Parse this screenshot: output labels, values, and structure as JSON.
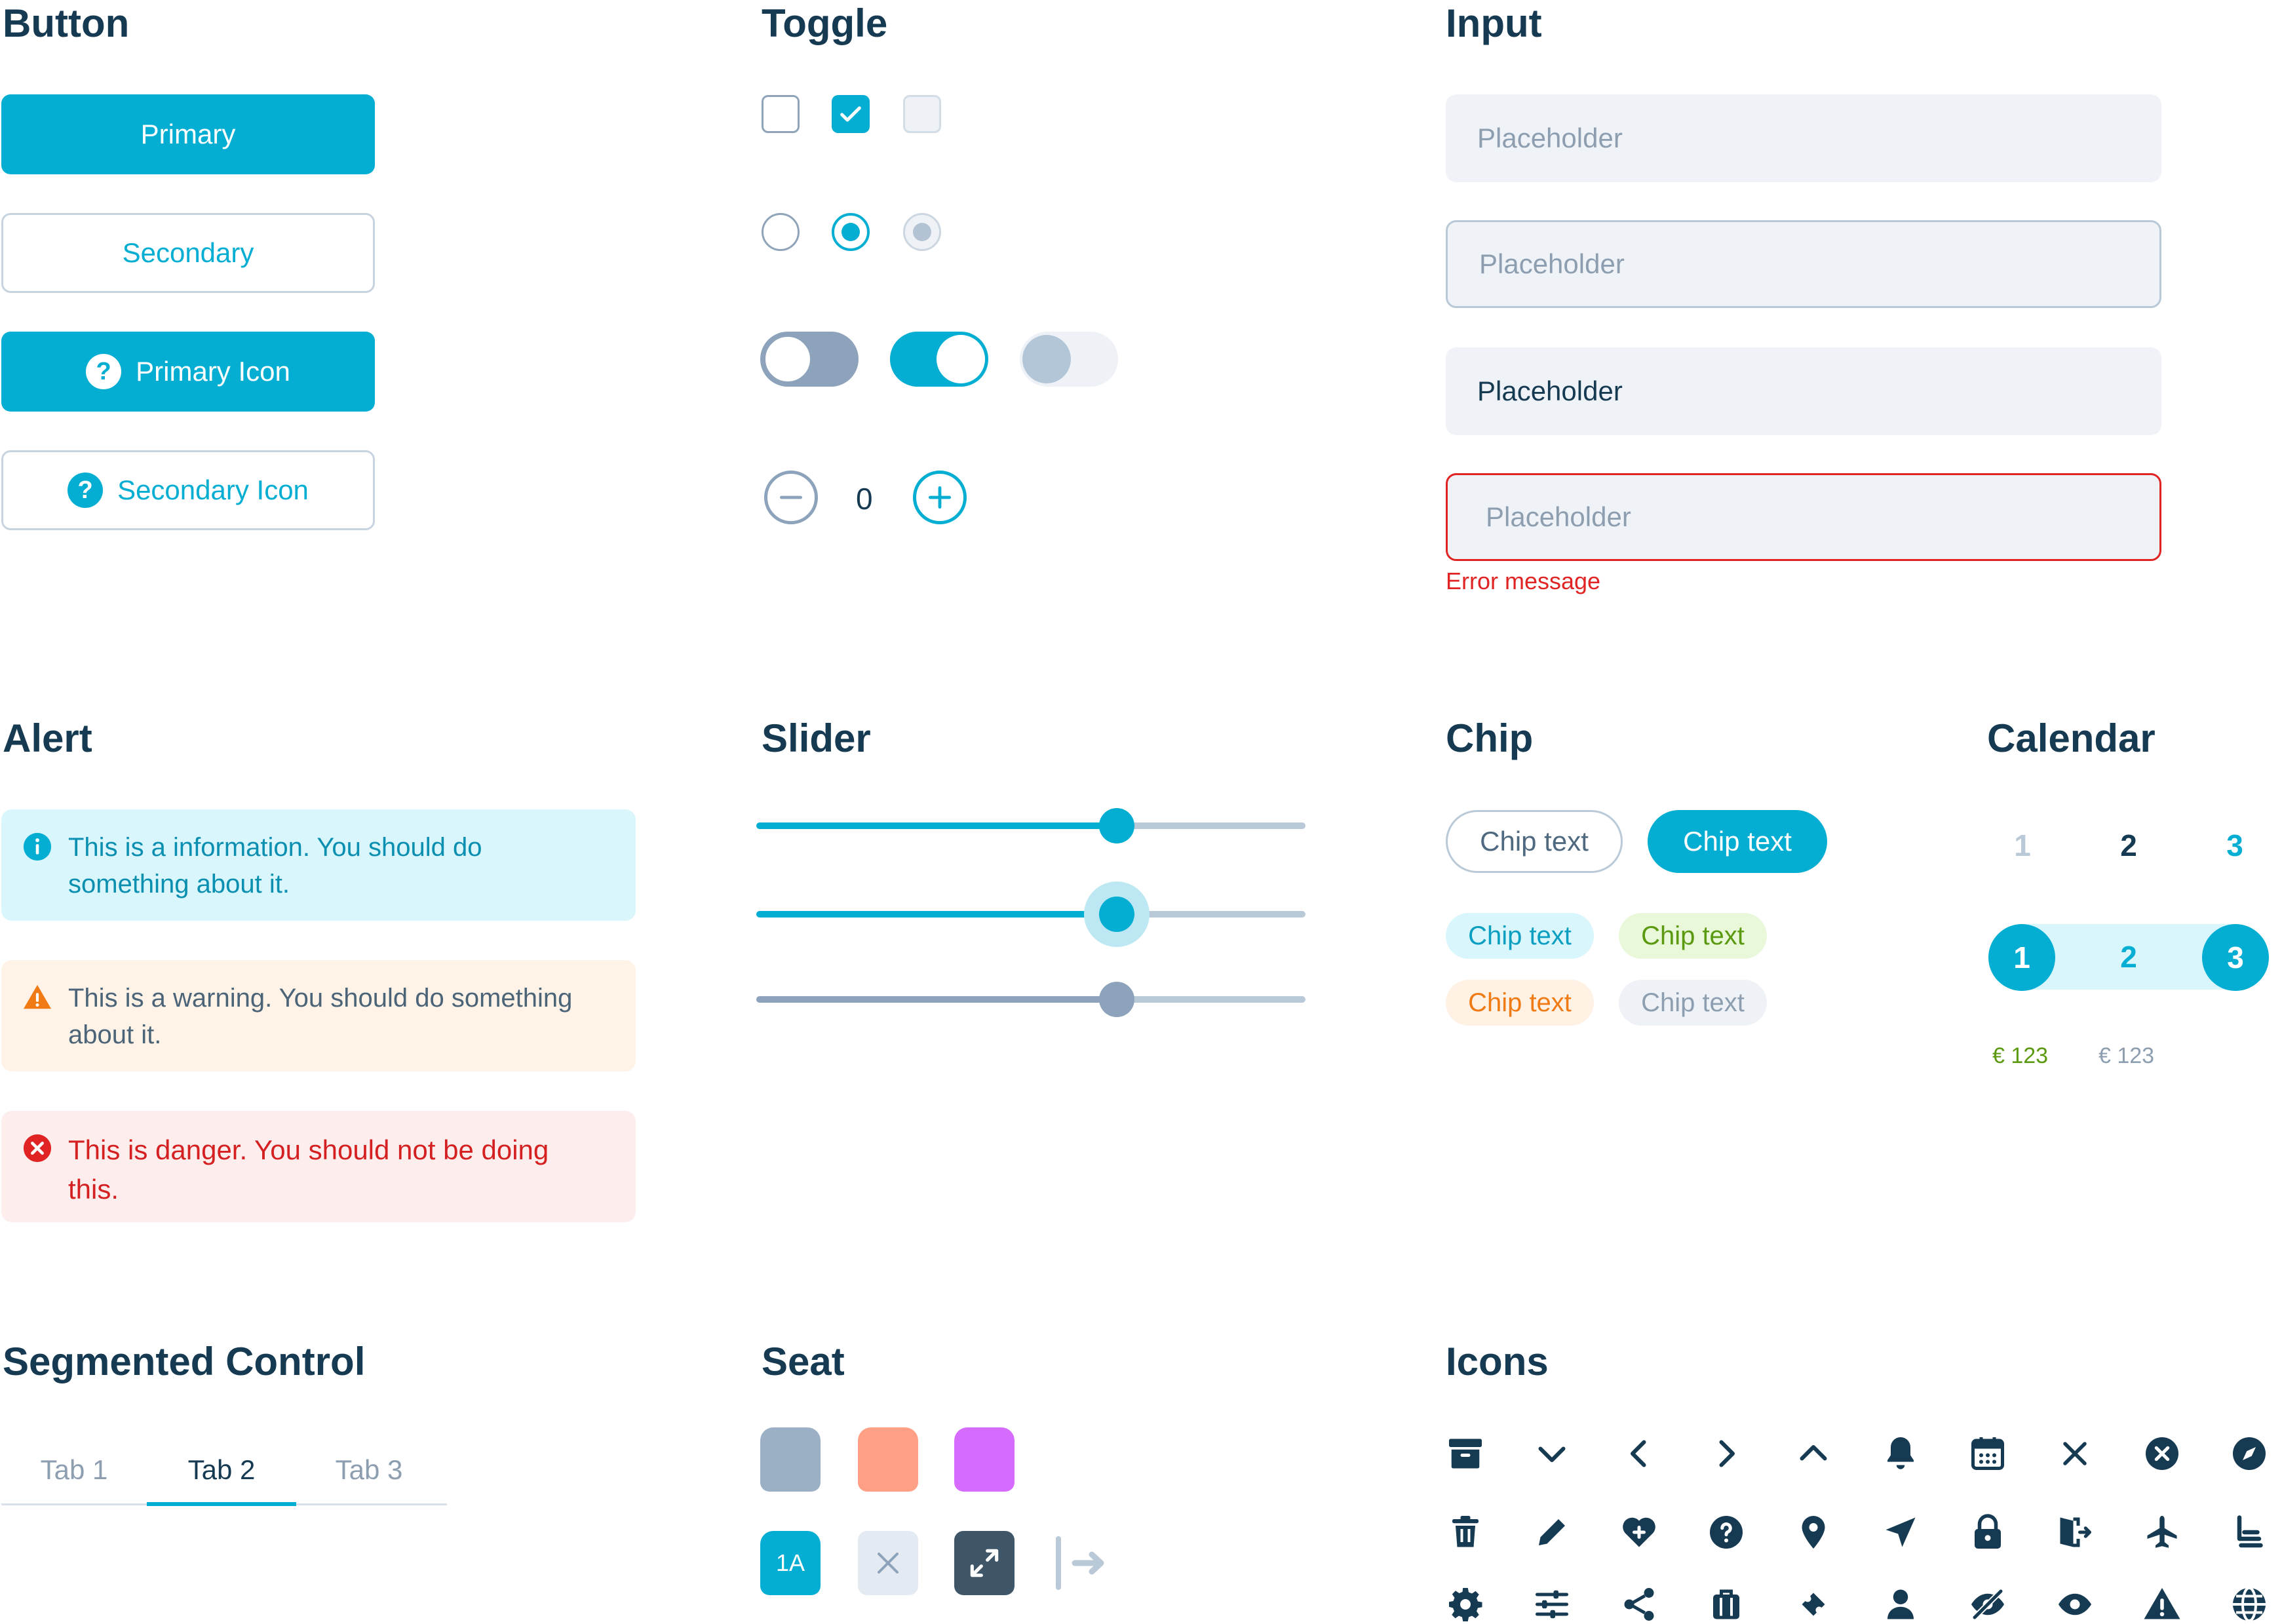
{
  "colors": {
    "accent": "#03aed2",
    "heading": "#163a52",
    "error": "#e02424"
  },
  "sections": {
    "button": "Button",
    "toggle": "Toggle",
    "input": "Input",
    "alert": "Alert",
    "slider": "Slider",
    "chip": "Chip",
    "calendar": "Calendar",
    "segmented": "Segmented Control",
    "seat": "Seat",
    "icons": "Icons"
  },
  "buttons": {
    "primary": "Primary",
    "secondary": "Secondary",
    "primary_icon": "Primary Icon",
    "secondary_icon": "Secondary Icon",
    "icon_glyph": "?"
  },
  "toggle": {
    "stepper_value": "0",
    "checkbox_states": [
      "unchecked",
      "checked",
      "disabled"
    ],
    "radio_states": [
      "unselected",
      "selected",
      "disabled"
    ],
    "switch_states": [
      "off",
      "on",
      "disabled"
    ]
  },
  "inputs": {
    "placeholder": "Placeholder",
    "filled_value": "Placeholder",
    "error_message": "Error message",
    "variants": [
      "default",
      "focused",
      "filled",
      "error"
    ]
  },
  "alerts": {
    "info_line1": "This is a information. You should do",
    "info_line2": "something about it.",
    "warning_line1": "This is a warning. You should do something",
    "warning_line2": "about it.",
    "danger_line1": "This is danger. You should not be doing",
    "danger_line2": "this."
  },
  "sliders": [
    {
      "state": "default",
      "value": 0.65
    },
    {
      "state": "active",
      "value": 0.65
    },
    {
      "state": "disabled",
      "value": 0.65
    }
  ],
  "chips": {
    "outline": "Chip text",
    "filled": "Chip text",
    "info": "Chip text",
    "success": "Chip text",
    "warning": "Chip text",
    "neutral": "Chip text"
  },
  "calendar": {
    "row1": [
      "1",
      "2",
      "3"
    ],
    "row2": [
      "1",
      "2",
      "3"
    ],
    "prices": [
      "€ 123",
      "€ 123"
    ]
  },
  "segmented": {
    "tabs": [
      "Tab 1",
      "Tab 2",
      "Tab 3"
    ],
    "selected": "Tab 2"
  },
  "seat": {
    "selected_label": "1A",
    "types": [
      "available",
      "extra-legroom",
      "premium",
      "selected",
      "unavailable",
      "exit-row-extra-space",
      "exit"
    ]
  },
  "icons": [
    "archive-icon",
    "chevron-down-icon",
    "chevron-left-icon",
    "chevron-right-icon",
    "chevron-up-icon",
    "bell-icon",
    "calendar-icon",
    "close-icon",
    "close-circle-icon",
    "compass-icon",
    "trash-icon",
    "pencil-icon",
    "heart-plus-icon",
    "help-circle-icon",
    "map-pin-icon",
    "navigation-icon",
    "lock-icon",
    "exit-door-icon",
    "airplane-icon",
    "seat-icon",
    "gear-icon",
    "sliders-icon",
    "share-icon",
    "luggage-icon",
    "ticket-icon",
    "user-icon",
    "eye-off-icon",
    "eye-icon",
    "warning-icon",
    "globe-icon"
  ]
}
